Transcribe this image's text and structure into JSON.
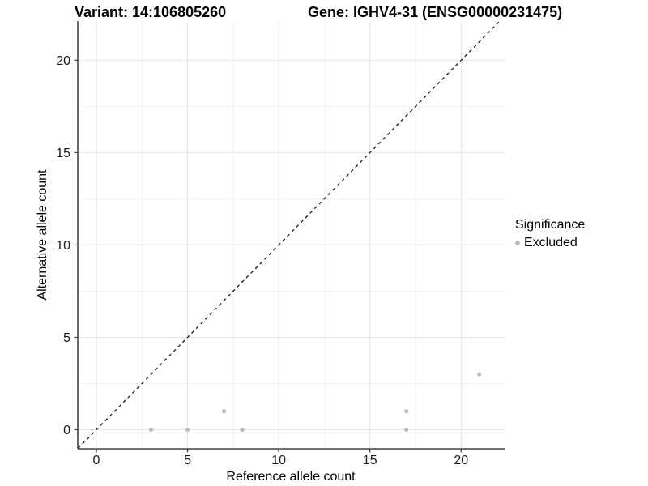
{
  "chart_data": {
    "type": "scatter",
    "titles": {
      "variant": "Variant: 14:106805260",
      "gene": "Gene: IGHV4-31 (ENSG00000231475)"
    },
    "xlabel": "Reference allele count",
    "ylabel": "Alternative allele count",
    "xlim": [
      -1.02,
      22.43
    ],
    "ylim": [
      -1.03,
      22.12
    ],
    "x_ticks": [
      0,
      5,
      10,
      15,
      20
    ],
    "y_ticks": [
      0,
      5,
      10,
      15,
      20
    ],
    "x_minor_ticks": [
      2.5,
      7.5,
      12.5,
      17.5
    ],
    "y_minor_ticks": [
      2.5,
      7.5,
      12.5,
      17.5
    ],
    "grid": true,
    "legend_position": "right",
    "reference_line": {
      "type": "identity",
      "equation": "y = x",
      "style": "dashed",
      "color": "#1a1a1a"
    },
    "series": [
      {
        "name": "Excluded",
        "color": "#bdbdbd",
        "points": [
          [
            3,
            0
          ],
          [
            5,
            0
          ],
          [
            7,
            1
          ],
          [
            8,
            0
          ],
          [
            17,
            0
          ],
          [
            17,
            1
          ],
          [
            21,
            3
          ]
        ]
      }
    ],
    "legend": {
      "title": "Significance",
      "entries": [
        {
          "label": "Excluded",
          "color": "#bdbdbd"
        }
      ]
    },
    "colors": {
      "grid_major": "#e5e5e5",
      "grid_minor": "#f2f2f2",
      "axis_line": "#444444",
      "tick_label": "#1a1a1a",
      "point": "#bdbdbd"
    }
  }
}
